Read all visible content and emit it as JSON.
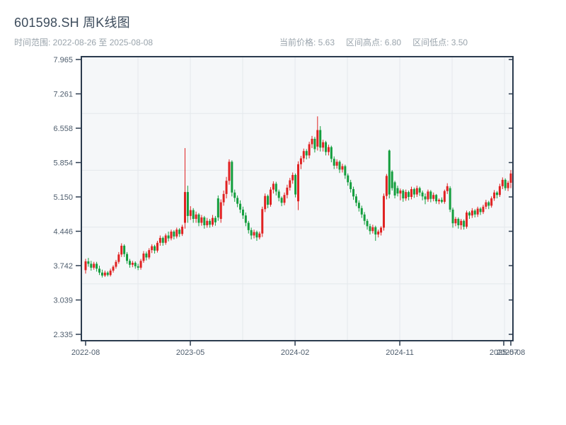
{
  "header": {
    "title": "601598.SH 周K线图",
    "date_range": "时间范围: 2022-08-26 至 2025-08-08",
    "legend": {
      "current": "当前价格: 5.63",
      "high": "区间高点: 6.80",
      "low": "区间低点: 3.50"
    }
  },
  "chart_data": {
    "type": "candlestick",
    "symbol": "601598.SH",
    "period": "weekly",
    "title": "601598.SH 周K线图",
    "date_start": "2022-08-26",
    "date_end": "2025-08-08",
    "current_price": 5.63,
    "range_high": 6.8,
    "range_low": 3.5,
    "up_means": "close >= open (red, Chinese convention)",
    "colors": {
      "up": "#e02222",
      "down": "#149e3e",
      "grid": "#e4e8ec",
      "plot_bg": "#f5f7f9",
      "spine": "#2b3b4e",
      "tick_text": "#4e5d6d"
    },
    "y_axis": {
      "min": 2.335,
      "max": 7.965,
      "tick_labels": [
        "7.965",
        "7.261",
        "6.558",
        "5.854",
        "5.150",
        "4.446",
        "3.742",
        "3.039",
        "2.335"
      ]
    },
    "x_axis": {
      "ticks": [
        {
          "label": "2022-08",
          "pos": 0.0
        },
        {
          "label": "2023-05",
          "pos": 0.2463
        },
        {
          "label": "2024-02",
          "pos": 0.4926
        },
        {
          "label": "2024-11",
          "pos": 0.7389
        },
        {
          "label": "2025-07",
          "pos": 0.9834
        },
        {
          "label": "2025-08",
          "pos": 1.0
        }
      ]
    },
    "grid_x": [
      0.1232,
      0.2463,
      0.3694,
      0.4926,
      0.6157,
      0.7389,
      0.862,
      0.9852
    ],
    "grid_y_divisions": 5,
    "candles": [
      [
        3.65,
        3.88,
        3.58,
        3.83
      ],
      [
        3.83,
        3.9,
        3.72,
        3.78
      ],
      [
        3.78,
        3.84,
        3.64,
        3.7
      ],
      [
        3.7,
        3.82,
        3.66,
        3.78
      ],
      [
        3.78,
        3.82,
        3.62,
        3.68
      ],
      [
        3.68,
        3.74,
        3.55,
        3.6
      ],
      [
        3.6,
        3.66,
        3.5,
        3.54
      ],
      [
        3.54,
        3.64,
        3.51,
        3.6
      ],
      [
        3.6,
        3.63,
        3.52,
        3.55
      ],
      [
        3.55,
        3.68,
        3.52,
        3.64
      ],
      [
        3.64,
        3.75,
        3.6,
        3.72
      ],
      [
        3.72,
        3.86,
        3.68,
        3.82
      ],
      [
        3.82,
        4.02,
        3.78,
        3.97
      ],
      [
        3.97,
        4.2,
        3.92,
        4.15
      ],
      [
        4.15,
        4.18,
        3.92,
        3.98
      ],
      [
        3.98,
        4.02,
        3.78,
        3.84
      ],
      [
        3.84,
        3.88,
        3.7,
        3.76
      ],
      [
        3.76,
        3.84,
        3.71,
        3.8
      ],
      [
        3.8,
        3.83,
        3.68,
        3.73
      ],
      [
        3.73,
        3.78,
        3.65,
        3.7
      ],
      [
        3.7,
        3.88,
        3.66,
        3.84
      ],
      [
        3.84,
        4.04,
        3.8,
        3.99
      ],
      [
        3.99,
        4.03,
        3.85,
        3.91
      ],
      [
        3.91,
        4.1,
        3.87,
        4.06
      ],
      [
        4.06,
        4.18,
        4.0,
        4.14
      ],
      [
        4.14,
        4.17,
        3.99,
        4.05
      ],
      [
        4.05,
        4.25,
        4.01,
        4.21
      ],
      [
        4.21,
        4.36,
        4.15,
        4.31
      ],
      [
        4.31,
        4.34,
        4.15,
        4.21
      ],
      [
        4.21,
        4.4,
        4.17,
        4.36
      ],
      [
        4.36,
        4.44,
        4.24,
        4.3
      ],
      [
        4.3,
        4.48,
        4.26,
        4.44
      ],
      [
        4.44,
        4.47,
        4.28,
        4.34
      ],
      [
        4.34,
        4.52,
        4.3,
        4.48
      ],
      [
        4.48,
        4.51,
        4.33,
        4.39
      ],
      [
        4.39,
        4.58,
        4.35,
        4.54
      ],
      [
        4.62,
        6.15,
        4.5,
        5.25
      ],
      [
        5.25,
        5.38,
        4.62,
        4.76
      ],
      [
        4.76,
        4.96,
        4.68,
        4.88
      ],
      [
        4.88,
        4.92,
        4.62,
        4.7
      ],
      [
        4.7,
        4.85,
        4.62,
        4.79
      ],
      [
        4.79,
        4.82,
        4.55,
        4.62
      ],
      [
        4.62,
        4.78,
        4.56,
        4.73
      ],
      [
        4.73,
        4.76,
        4.5,
        4.57
      ],
      [
        4.57,
        4.72,
        4.52,
        4.66
      ],
      [
        4.66,
        4.7,
        4.52,
        4.58
      ],
      [
        4.58,
        4.78,
        4.54,
        4.72
      ],
      [
        4.72,
        4.76,
        4.56,
        4.63
      ],
      [
        5.12,
        5.18,
        4.66,
        4.73
      ],
      [
        4.7,
        5.1,
        4.62,
        5.04
      ],
      [
        5.04,
        5.28,
        4.97,
        5.21
      ],
      [
        5.21,
        5.56,
        5.12,
        5.48
      ],
      [
        5.48,
        5.92,
        5.4,
        5.87
      ],
      [
        5.87,
        5.9,
        5.16,
        5.24
      ],
      [
        5.24,
        5.3,
        5.05,
        5.13
      ],
      [
        5.13,
        5.18,
        4.94,
        5.01
      ],
      [
        5.01,
        5.08,
        4.82,
        4.89
      ],
      [
        4.89,
        4.95,
        4.7,
        4.77
      ],
      [
        4.77,
        4.83,
        4.55,
        4.62
      ],
      [
        4.62,
        4.66,
        4.4,
        4.47
      ],
      [
        4.47,
        4.52,
        4.28,
        4.36
      ],
      [
        4.36,
        4.48,
        4.3,
        4.43
      ],
      [
        4.43,
        4.46,
        4.25,
        4.32
      ],
      [
        4.32,
        4.44,
        4.28,
        4.4
      ],
      [
        4.4,
        4.95,
        4.33,
        4.9
      ],
      [
        4.9,
        5.22,
        4.84,
        5.17
      ],
      [
        5.17,
        5.2,
        4.92,
        4.99
      ],
      [
        4.99,
        5.35,
        4.95,
        5.3
      ],
      [
        5.3,
        5.47,
        5.22,
        5.42
      ],
      [
        5.42,
        5.46,
        5.18,
        5.26
      ],
      [
        5.26,
        5.3,
        5.06,
        5.13
      ],
      [
        5.13,
        5.16,
        4.96,
        5.03
      ],
      [
        5.03,
        5.24,
        4.98,
        5.19
      ],
      [
        5.19,
        5.4,
        5.12,
        5.34
      ],
      [
        5.34,
        5.54,
        5.28,
        5.49
      ],
      [
        5.49,
        5.65,
        5.42,
        5.6
      ],
      [
        5.6,
        5.63,
        5.14,
        5.2
      ],
      [
        5.06,
        5.88,
        4.88,
        5.82
      ],
      [
        5.82,
        5.99,
        5.72,
        5.94
      ],
      [
        5.94,
        6.14,
        5.86,
        6.09
      ],
      [
        6.09,
        6.13,
        5.92,
        6.0
      ],
      [
        6.0,
        6.28,
        5.94,
        6.23
      ],
      [
        6.23,
        6.4,
        6.15,
        6.34
      ],
      [
        6.34,
        6.38,
        6.06,
        6.13
      ],
      [
        6.18,
        6.8,
        6.1,
        6.52
      ],
      [
        6.52,
        6.6,
        6.08,
        6.16
      ],
      [
        6.16,
        6.32,
        6.08,
        6.27
      ],
      [
        6.27,
        6.3,
        6.0,
        6.07
      ],
      [
        6.07,
        6.22,
        6.0,
        6.17
      ],
      [
        6.17,
        6.2,
        5.86,
        5.93
      ],
      [
        5.93,
        5.98,
        5.72,
        5.79
      ],
      [
        5.79,
        5.92,
        5.73,
        5.87
      ],
      [
        5.87,
        5.9,
        5.64,
        5.71
      ],
      [
        5.71,
        5.83,
        5.65,
        5.78
      ],
      [
        5.78,
        5.81,
        5.52,
        5.59
      ],
      [
        5.59,
        5.63,
        5.38,
        5.45
      ],
      [
        5.45,
        5.5,
        5.24,
        5.31
      ],
      [
        5.31,
        5.36,
        5.09,
        5.16
      ],
      [
        5.16,
        5.21,
        4.96,
        5.03
      ],
      [
        5.03,
        5.08,
        4.85,
        4.92
      ],
      [
        4.92,
        4.97,
        4.72,
        4.79
      ],
      [
        4.79,
        4.84,
        4.58,
        4.66
      ],
      [
        4.66,
        4.7,
        4.48,
        4.55
      ],
      [
        4.55,
        4.6,
        4.38,
        4.45
      ],
      [
        4.45,
        4.58,
        4.4,
        4.53
      ],
      [
        4.53,
        4.56,
        4.25,
        4.38
      ],
      [
        4.38,
        4.48,
        4.32,
        4.44
      ],
      [
        4.42,
        4.55,
        4.36,
        4.52
      ],
      [
        4.52,
        5.22,
        4.46,
        5.17
      ],
      [
        5.17,
        5.62,
        5.1,
        5.58
      ],
      [
        6.1,
        6.12,
        5.12,
        5.2
      ],
      [
        5.67,
        5.7,
        5.28,
        5.33
      ],
      [
        5.45,
        5.48,
        5.12,
        5.18
      ],
      [
        5.33,
        5.38,
        5.16,
        5.22
      ],
      [
        5.22,
        5.32,
        5.08,
        5.28
      ],
      [
        5.28,
        5.31,
        5.05,
        5.12
      ],
      [
        5.12,
        5.3,
        5.07,
        5.25
      ],
      [
        5.25,
        5.28,
        5.08,
        5.15
      ],
      [
        5.15,
        5.36,
        5.1,
        5.31
      ],
      [
        5.31,
        5.34,
        5.13,
        5.2
      ],
      [
        5.2,
        5.38,
        5.15,
        5.33
      ],
      [
        5.33,
        5.36,
        5.17,
        5.24
      ],
      [
        5.24,
        5.28,
        5.08,
        5.16
      ],
      [
        5.16,
        5.22,
        5.0,
        5.1
      ],
      [
        5.1,
        5.3,
        5.05,
        5.26
      ],
      [
        5.26,
        5.29,
        5.04,
        5.11
      ],
      [
        5.11,
        5.24,
        5.06,
        5.19
      ],
      [
        5.19,
        5.21,
        5.01,
        5.06
      ],
      [
        5.06,
        5.12,
        5.0,
        5.09
      ],
      [
        5.09,
        5.14,
        5.02,
        5.05
      ],
      [
        5.05,
        5.3,
        5.01,
        5.27
      ],
      [
        5.27,
        5.43,
        5.21,
        5.37
      ],
      [
        5.33,
        5.37,
        4.84,
        4.89
      ],
      [
        4.89,
        4.93,
        4.52,
        4.61
      ],
      [
        4.61,
        4.74,
        4.55,
        4.7
      ],
      [
        4.7,
        4.73,
        4.5,
        4.57
      ],
      [
        4.57,
        4.7,
        4.48,
        4.66
      ],
      [
        4.66,
        4.69,
        4.48,
        4.54
      ],
      [
        4.54,
        4.87,
        4.5,
        4.83
      ],
      [
        4.83,
        4.86,
        4.7,
        4.77
      ],
      [
        4.77,
        4.92,
        4.72,
        4.87
      ],
      [
        4.87,
        4.9,
        4.73,
        4.79
      ],
      [
        4.79,
        4.95,
        4.74,
        4.91
      ],
      [
        4.91,
        4.94,
        4.78,
        4.84
      ],
      [
        4.84,
        4.99,
        4.8,
        4.95
      ],
      [
        4.95,
        5.09,
        4.9,
        5.04
      ],
      [
        5.04,
        5.07,
        4.9,
        4.97
      ],
      [
        4.97,
        5.16,
        4.93,
        5.12
      ],
      [
        5.12,
        5.29,
        5.07,
        5.24
      ],
      [
        5.24,
        5.27,
        5.12,
        5.19
      ],
      [
        5.19,
        5.42,
        5.15,
        5.37
      ],
      [
        5.37,
        5.55,
        5.31,
        5.5
      ],
      [
        5.5,
        5.53,
        5.28,
        5.33
      ],
      [
        5.33,
        5.48,
        5.27,
        5.44
      ],
      [
        5.44,
        5.7,
        5.33,
        5.63
      ]
    ]
  }
}
